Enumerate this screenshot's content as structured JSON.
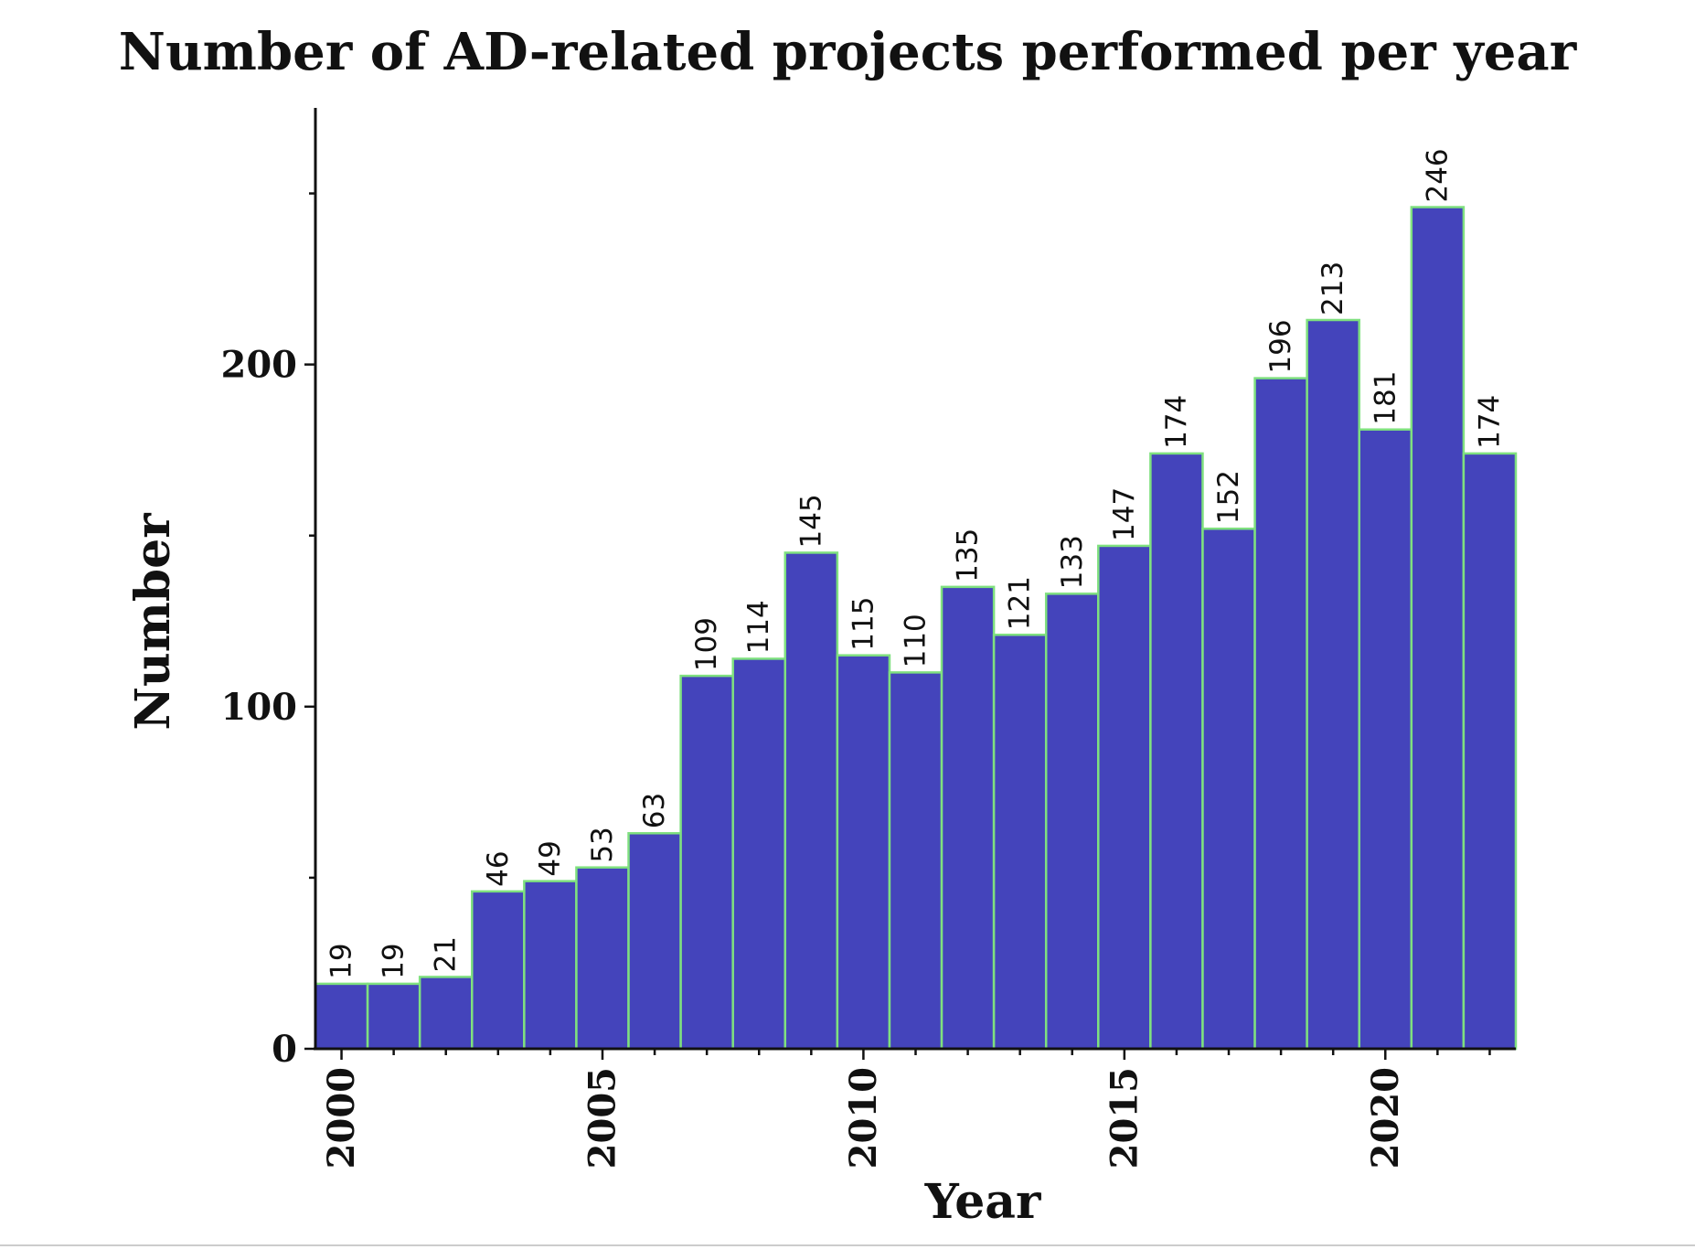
{
  "chart_data": {
    "type": "bar",
    "title": "Number of AD-related projects performed per year",
    "xlabel": "Year",
    "ylabel": "Number",
    "categories": [
      2000,
      2001,
      2002,
      2003,
      2004,
      2005,
      2006,
      2007,
      2008,
      2009,
      2010,
      2011,
      2012,
      2013,
      2014,
      2015,
      2016,
      2017,
      2018,
      2019,
      2020,
      2021,
      2022
    ],
    "values": [
      19,
      19,
      21,
      46,
      49,
      53,
      63,
      109,
      114,
      145,
      115,
      110,
      135,
      121,
      133,
      147,
      174,
      152,
      196,
      213,
      181,
      246,
      174
    ],
    "data_labels": [
      "19",
      "19",
      "21",
      "46",
      "49",
      "53",
      "63",
      "109",
      "114",
      "145",
      "115",
      "110",
      "135",
      "121",
      "133",
      "147",
      "174",
      "152",
      "196",
      "213",
      "181",
      "246",
      "174"
    ],
    "x_ticks": [
      2000,
      2005,
      2010,
      2015,
      2020
    ],
    "x_tick_labels": [
      "2000",
      "2005",
      "2010",
      "2015",
      "2020"
    ],
    "y_ticks": [
      0,
      100,
      200
    ],
    "y_tick_labels": [
      "0",
      "100",
      "200"
    ],
    "y_minor_ticks": [
      50,
      150,
      250
    ],
    "ylim": [
      0,
      275
    ],
    "xlim": [
      1999.5,
      2022.5
    ],
    "bar_color": "#4444bb",
    "bar_edge_color": "#7fe07f",
    "grid": false,
    "legend": "none"
  }
}
